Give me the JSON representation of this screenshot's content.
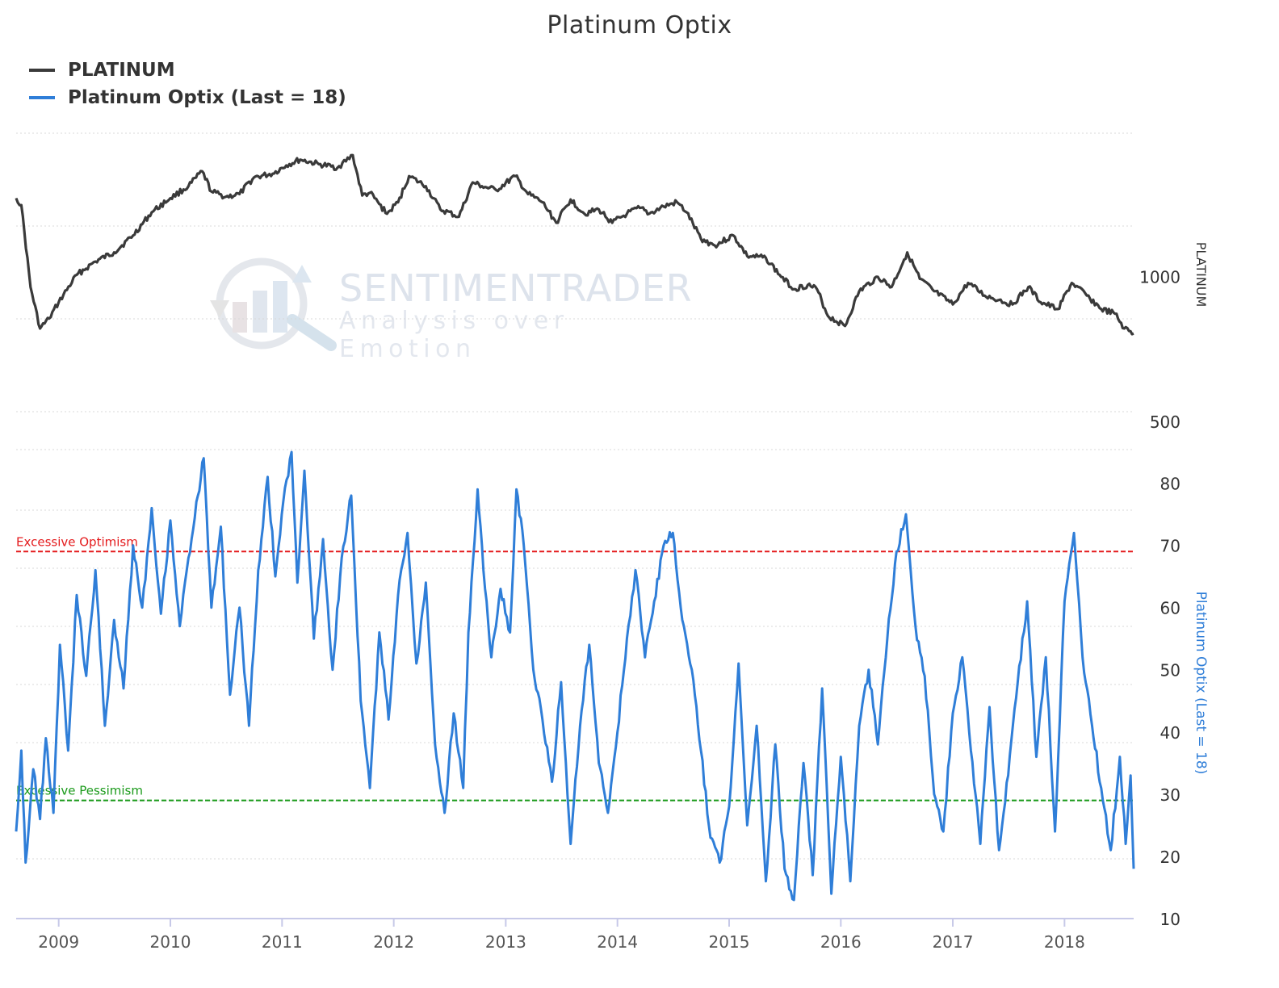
{
  "chart_data": {
    "type": "line",
    "title": "Platinum Optix",
    "legend": {
      "placement": "top-left",
      "entries": [
        {
          "label": "PLATINUM",
          "color": "#3a3a3a"
        },
        {
          "label": "Platinum Optix (Last = 18)",
          "color": "#2f7ed8"
        }
      ]
    },
    "watermark": {
      "title": "SENTIMENTRADER",
      "subtitle": "Analysis over Emotion"
    },
    "x_axis": {
      "type": "date",
      "range": [
        "2008-08-15",
        "2018-08-15"
      ],
      "ticks": [
        "2009",
        "2010",
        "2011",
        "2012",
        "2013",
        "2014",
        "2015",
        "2016",
        "2017",
        "2018"
      ],
      "tick_dates": [
        "2009-01-01",
        "2010-01-01",
        "2011-01-01",
        "2012-01-01",
        "2013-01-01",
        "2014-01-01",
        "2015-01-01",
        "2016-01-01",
        "2017-01-01",
        "2018-01-01"
      ]
    },
    "top_panel": {
      "series_name": "PLATINUM",
      "axis_title": "PLATINUM",
      "scale": "log",
      "range": [
        500,
        2300
      ],
      "tick_labels": [
        "1000",
        "500"
      ],
      "tick_values": [
        1000,
        500
      ],
      "grid": true,
      "color": "#3a3a3a",
      "points": [
        [
          "2008-08-15",
          1530
        ],
        [
          "2008-09-01",
          1480
        ],
        [
          "2008-10-01",
          1000
        ],
        [
          "2008-11-01",
          820
        ],
        [
          "2008-12-01",
          860
        ],
        [
          "2009-01-01",
          930
        ],
        [
          "2009-03-01",
          1060
        ],
        [
          "2009-05-01",
          1130
        ],
        [
          "2009-07-01",
          1180
        ],
        [
          "2009-09-01",
          1280
        ],
        [
          "2009-11-01",
          1430
        ],
        [
          "2010-01-01",
          1530
        ],
        [
          "2010-03-01",
          1620
        ],
        [
          "2010-04-15",
          1740
        ],
        [
          "2010-05-15",
          1580
        ],
        [
          "2010-07-01",
          1540
        ],
        [
          "2010-08-15",
          1560
        ],
        [
          "2010-10-01",
          1690
        ],
        [
          "2010-12-01",
          1720
        ],
        [
          "2011-01-15",
          1790
        ],
        [
          "2011-03-01",
          1840
        ],
        [
          "2011-05-01",
          1800
        ],
        [
          "2011-07-01",
          1770
        ],
        [
          "2011-08-20",
          1880
        ],
        [
          "2011-09-20",
          1550
        ],
        [
          "2011-10-15",
          1570
        ],
        [
          "2011-12-10",
          1420
        ],
        [
          "2012-01-15",
          1500
        ],
        [
          "2012-02-20",
          1700
        ],
        [
          "2012-04-15",
          1620
        ],
        [
          "2012-06-01",
          1450
        ],
        [
          "2012-08-01",
          1400
        ],
        [
          "2012-09-15",
          1650
        ],
        [
          "2012-10-15",
          1620
        ],
        [
          "2012-12-01",
          1590
        ],
        [
          "2013-02-01",
          1700
        ],
        [
          "2013-03-15",
          1560
        ],
        [
          "2013-05-01",
          1500
        ],
        [
          "2013-06-15",
          1360
        ],
        [
          "2013-08-01",
          1520
        ],
        [
          "2013-09-15",
          1420
        ],
        [
          "2013-11-01",
          1450
        ],
        [
          "2013-12-15",
          1360
        ],
        [
          "2014-02-01",
          1420
        ],
        [
          "2014-03-15",
          1460
        ],
        [
          "2014-04-15",
          1420
        ],
        [
          "2014-06-01",
          1470
        ],
        [
          "2014-07-15",
          1500
        ],
        [
          "2014-08-15",
          1430
        ],
        [
          "2014-10-01",
          1260
        ],
        [
          "2014-11-15",
          1220
        ],
        [
          "2015-01-15",
          1280
        ],
        [
          "2015-03-01",
          1160
        ],
        [
          "2015-05-01",
          1150
        ],
        [
          "2015-06-15",
          1060
        ],
        [
          "2015-08-01",
          990
        ],
        [
          "2015-09-15",
          1010
        ],
        [
          "2015-10-15",
          990
        ],
        [
          "2015-11-20",
          870
        ],
        [
          "2016-01-15",
          830
        ],
        [
          "2016-03-01",
          980
        ],
        [
          "2016-05-01",
          1050
        ],
        [
          "2016-06-15",
          1000
        ],
        [
          "2016-08-05",
          1180
        ],
        [
          "2016-09-15",
          1040
        ],
        [
          "2016-11-01",
          980
        ],
        [
          "2017-01-01",
          920
        ],
        [
          "2017-02-20",
          1020
        ],
        [
          "2017-04-15",
          960
        ],
        [
          "2017-06-01",
          940
        ],
        [
          "2017-07-15",
          920
        ],
        [
          "2017-09-05",
          1000
        ],
        [
          "2017-10-15",
          930
        ],
        [
          "2017-12-10",
          900
        ],
        [
          "2018-01-25",
          1020
        ],
        [
          "2018-03-15",
          960
        ],
        [
          "2018-05-01",
          900
        ],
        [
          "2018-06-15",
          880
        ],
        [
          "2018-07-15",
          820
        ],
        [
          "2018-08-15",
          800
        ]
      ]
    },
    "bottom_panel": {
      "series_name": "Platinum Optix (Last = 18)",
      "axis_title": "Platinum Optix (Last = 18)",
      "range": [
        10,
        85
      ],
      "tick_labels": [
        "80",
        "70",
        "60",
        "50",
        "40",
        "30",
        "20",
        "10"
      ],
      "tick_values": [
        80,
        70,
        60,
        50,
        40,
        30,
        20,
        10
      ],
      "grid": true,
      "color": "#2f7ed8",
      "last": 18,
      "reference_lines": [
        {
          "label": "Excessive Optimism",
          "value": 69,
          "color": "#e41a1c"
        },
        {
          "label": "Excessive Pessimism",
          "value": 29,
          "color": "#1a9a1a"
        }
      ],
      "points": [
        [
          "2008-08-15",
          24
        ],
        [
          "2008-09-01",
          37
        ],
        [
          "2008-09-15",
          19
        ],
        [
          "2008-10-10",
          34
        ],
        [
          "2008-11-01",
          26
        ],
        [
          "2008-11-20",
          39
        ],
        [
          "2008-12-15",
          27
        ],
        [
          "2009-01-05",
          54
        ],
        [
          "2009-02-01",
          37
        ],
        [
          "2009-03-01",
          62
        ],
        [
          "2009-04-01",
          49
        ],
        [
          "2009-05-01",
          66
        ],
        [
          "2009-06-01",
          41
        ],
        [
          "2009-07-01",
          58
        ],
        [
          "2009-08-01",
          47
        ],
        [
          "2009-09-01",
          70
        ],
        [
          "2009-10-01",
          60
        ],
        [
          "2009-11-01",
          76
        ],
        [
          "2009-12-01",
          59
        ],
        [
          "2010-01-01",
          74
        ],
        [
          "2010-02-01",
          57
        ],
        [
          "2010-03-01",
          68
        ],
        [
          "2010-04-01",
          78
        ],
        [
          "2010-04-20",
          84
        ],
        [
          "2010-05-15",
          60
        ],
        [
          "2010-06-15",
          73
        ],
        [
          "2010-07-15",
          46
        ],
        [
          "2010-08-15",
          60
        ],
        [
          "2010-09-15",
          41
        ],
        [
          "2010-10-15",
          66
        ],
        [
          "2010-11-15",
          81
        ],
        [
          "2010-12-10",
          65
        ],
        [
          "2011-01-05",
          77
        ],
        [
          "2011-02-01",
          85
        ],
        [
          "2011-02-20",
          64
        ],
        [
          "2011-03-15",
          82
        ],
        [
          "2011-04-15",
          55
        ],
        [
          "2011-05-15",
          71
        ],
        [
          "2011-06-15",
          50
        ],
        [
          "2011-07-15",
          68
        ],
        [
          "2011-08-15",
          78
        ],
        [
          "2011-09-15",
          45
        ],
        [
          "2011-10-15",
          31
        ],
        [
          "2011-11-15",
          56
        ],
        [
          "2011-12-15",
          42
        ],
        [
          "2012-01-15",
          62
        ],
        [
          "2012-02-15",
          72
        ],
        [
          "2012-03-15",
          51
        ],
        [
          "2012-04-15",
          64
        ],
        [
          "2012-05-15",
          38
        ],
        [
          "2012-06-15",
          27
        ],
        [
          "2012-07-15",
          43
        ],
        [
          "2012-08-15",
          31
        ],
        [
          "2012-09-01",
          56
        ],
        [
          "2012-10-01",
          79
        ],
        [
          "2012-10-20",
          66
        ],
        [
          "2012-11-15",
          52
        ],
        [
          "2012-12-15",
          63
        ],
        [
          "2013-01-15",
          56
        ],
        [
          "2013-02-05",
          79
        ],
        [
          "2013-03-01",
          70
        ],
        [
          "2013-04-01",
          50
        ],
        [
          "2013-05-01",
          42
        ],
        [
          "2013-06-01",
          32
        ],
        [
          "2013-07-01",
          48
        ],
        [
          "2013-08-01",
          22
        ],
        [
          "2013-09-01",
          41
        ],
        [
          "2013-10-01",
          54
        ],
        [
          "2013-11-01",
          35
        ],
        [
          "2013-12-01",
          27
        ],
        [
          "2014-01-01",
          40
        ],
        [
          "2014-02-01",
          55
        ],
        [
          "2014-03-01",
          66
        ],
        [
          "2014-04-01",
          52
        ],
        [
          "2014-05-01",
          61
        ],
        [
          "2014-06-01",
          70
        ],
        [
          "2014-07-01",
          72
        ],
        [
          "2014-08-01",
          58
        ],
        [
          "2014-09-01",
          50
        ],
        [
          "2014-10-01",
          37
        ],
        [
          "2014-11-01",
          23
        ],
        [
          "2014-12-01",
          19
        ],
        [
          "2015-01-01",
          28
        ],
        [
          "2015-02-01",
          51
        ],
        [
          "2015-03-01",
          25
        ],
        [
          "2015-04-01",
          41
        ],
        [
          "2015-05-01",
          16
        ],
        [
          "2015-06-01",
          38
        ],
        [
          "2015-07-01",
          18
        ],
        [
          "2015-08-01",
          13
        ],
        [
          "2015-09-01",
          35
        ],
        [
          "2015-10-01",
          17
        ],
        [
          "2015-11-01",
          47
        ],
        [
          "2015-12-01",
          14
        ],
        [
          "2016-01-01",
          36
        ],
        [
          "2016-02-01",
          16
        ],
        [
          "2016-03-01",
          41
        ],
        [
          "2016-04-01",
          50
        ],
        [
          "2016-05-01",
          38
        ],
        [
          "2016-06-01",
          55
        ],
        [
          "2016-07-01",
          69
        ],
        [
          "2016-08-01",
          75
        ],
        [
          "2016-09-01",
          57
        ],
        [
          "2016-10-01",
          49
        ],
        [
          "2016-11-01",
          30
        ],
        [
          "2016-12-01",
          24
        ],
        [
          "2017-01-01",
          43
        ],
        [
          "2017-02-01",
          52
        ],
        [
          "2017-03-01",
          37
        ],
        [
          "2017-04-01",
          22
        ],
        [
          "2017-05-01",
          44
        ],
        [
          "2017-06-01",
          21
        ],
        [
          "2017-07-01",
          33
        ],
        [
          "2017-08-01",
          48
        ],
        [
          "2017-09-01",
          61
        ],
        [
          "2017-10-01",
          36
        ],
        [
          "2017-11-01",
          52
        ],
        [
          "2017-12-01",
          24
        ],
        [
          "2018-01-01",
          61
        ],
        [
          "2018-02-01",
          72
        ],
        [
          "2018-03-01",
          52
        ],
        [
          "2018-04-01",
          41
        ],
        [
          "2018-05-01",
          31
        ],
        [
          "2018-06-01",
          21
        ],
        [
          "2018-07-01",
          36
        ],
        [
          "2018-07-20",
          22
        ],
        [
          "2018-08-05",
          33
        ],
        [
          "2018-08-15",
          18
        ]
      ]
    }
  }
}
